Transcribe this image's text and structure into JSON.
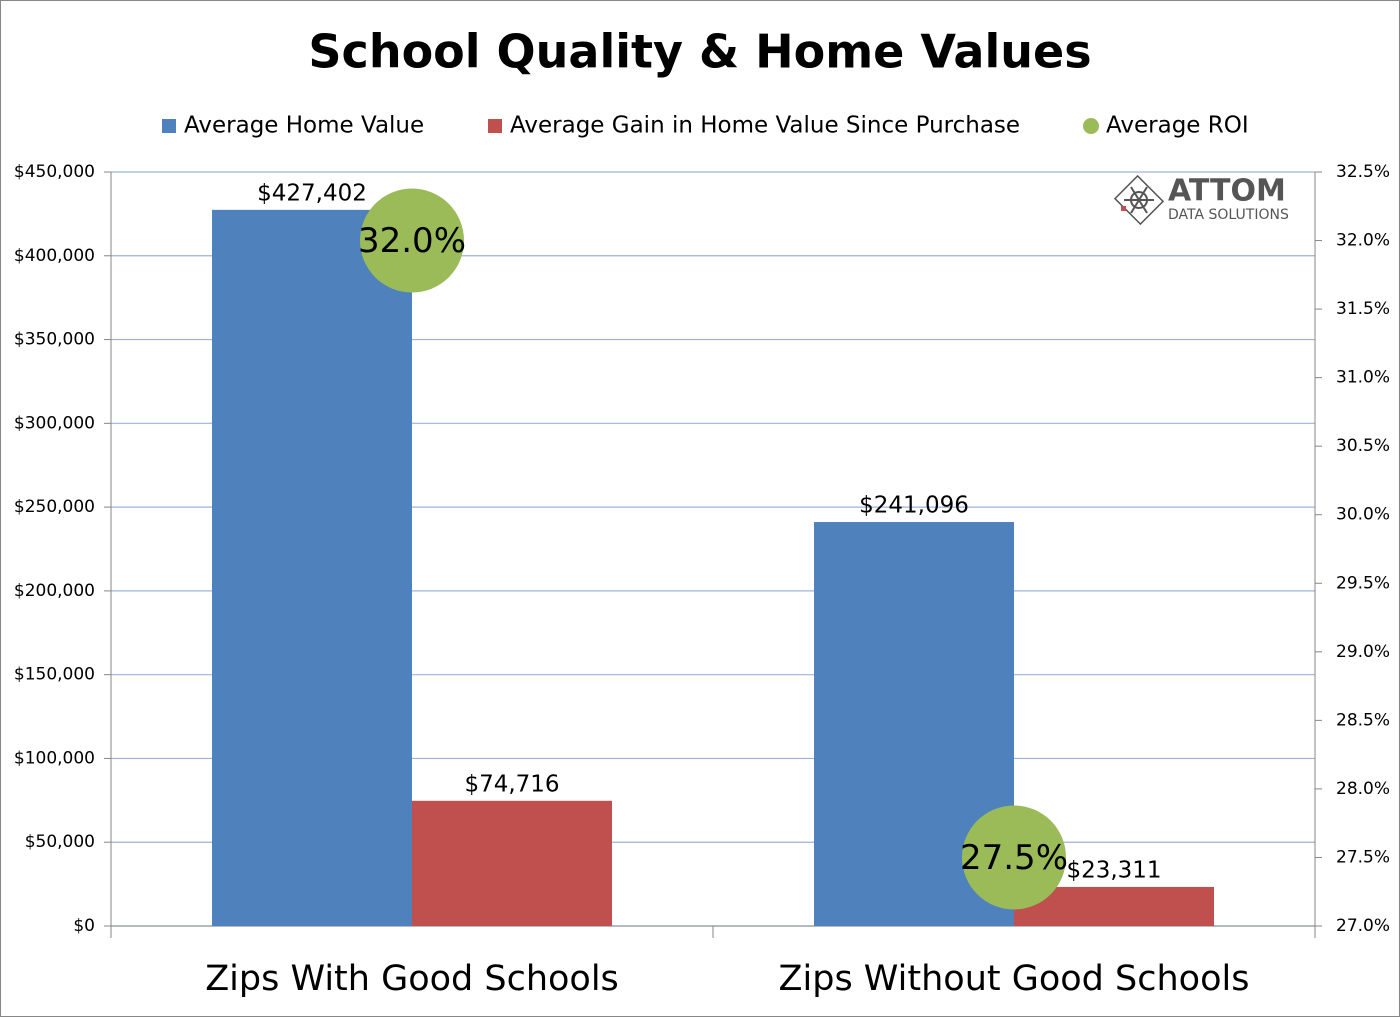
{
  "chart_data": {
    "type": "bar",
    "title": "School Quality & Home Values",
    "categories": [
      "Zips With Good Schools",
      "Zips Without Good Schools"
    ],
    "series": [
      {
        "name": "Average Home Value",
        "color": "#4f81bd",
        "type": "bar",
        "values": [
          427402,
          241096
        ],
        "value_labels": [
          "$427,402",
          "$241,096"
        ]
      },
      {
        "name": "Average Gain in Home Value Since Purchase",
        "color": "#c0504d",
        "type": "bar",
        "values": [
          74716,
          23311
        ],
        "value_labels": [
          "$74,716",
          "$23,311"
        ]
      },
      {
        "name": "Average ROI",
        "color": "#9bbb59",
        "type": "scatter",
        "axis": "y2",
        "values": [
          32.0,
          27.5
        ],
        "value_labels": [
          "32.0%",
          "27.5%"
        ]
      }
    ],
    "ylim": [
      0,
      450000
    ],
    "yticks": [
      {
        "value": 0,
        "label": "$0"
      },
      {
        "value": 50000,
        "label": "$50,000"
      },
      {
        "value": 100000,
        "label": "$100,000"
      },
      {
        "value": 150000,
        "label": "$150,000"
      },
      {
        "value": 200000,
        "label": "$200,000"
      },
      {
        "value": 250000,
        "label": "$250,000"
      },
      {
        "value": 300000,
        "label": "$300,000"
      },
      {
        "value": 350000,
        "label": "$350,000"
      },
      {
        "value": 400000,
        "label": "$400,000"
      },
      {
        "value": 450000,
        "label": "$450,000"
      }
    ],
    "y2lim": [
      27.0,
      32.5
    ],
    "y2ticks": [
      {
        "value": 27.0,
        "label": "27.0%"
      },
      {
        "value": 27.5,
        "label": "27.5%"
      },
      {
        "value": 28.0,
        "label": "28.0%"
      },
      {
        "value": 28.5,
        "label": "28.5%"
      },
      {
        "value": 29.0,
        "label": "29.0%"
      },
      {
        "value": 29.5,
        "label": "29.5%"
      },
      {
        "value": 30.0,
        "label": "30.0%"
      },
      {
        "value": 30.5,
        "label": "30.5%"
      },
      {
        "value": 31.0,
        "label": "31.0%"
      },
      {
        "value": 31.5,
        "label": "31.5%"
      },
      {
        "value": 32.0,
        "label": "32.0%"
      },
      {
        "value": 32.5,
        "label": "32.5%"
      }
    ],
    "grid": true,
    "legend": "top",
    "logo": {
      "name": "ATTOM",
      "tagline": "DATA SOLUTIONS"
    }
  }
}
